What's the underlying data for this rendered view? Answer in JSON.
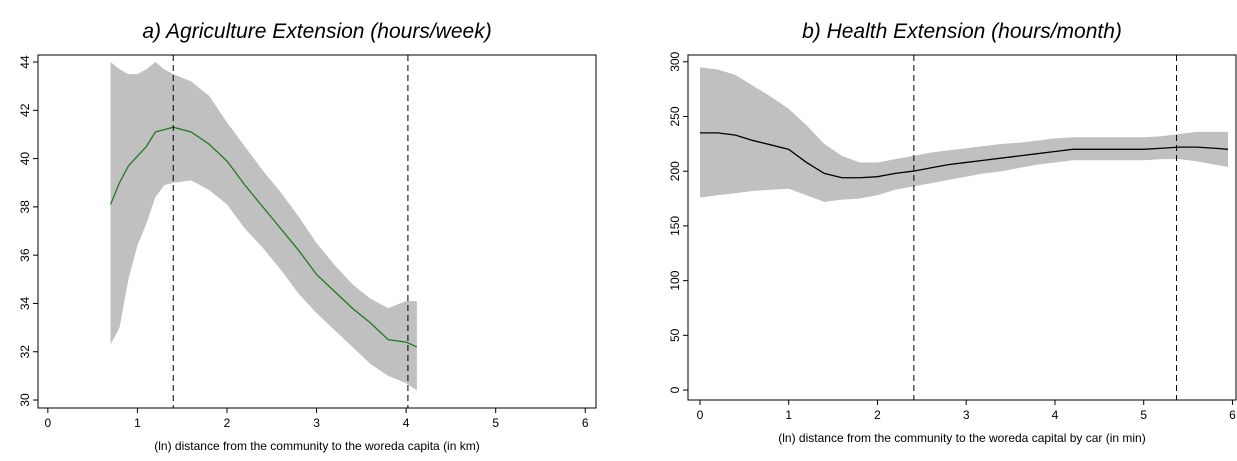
{
  "chart_data": [
    {
      "type": "line",
      "title": "a) Agriculture Extension (hours/week)",
      "x_label": "(ln) distance from the community to the woreda capita (in km)",
      "x": [
        0.7,
        0.8,
        0.9,
        1.0,
        1.1,
        1.2,
        1.3,
        1.4,
        1.6,
        1.8,
        2.0,
        2.2,
        2.4,
        2.6,
        2.8,
        3.0,
        3.2,
        3.4,
        3.6,
        3.8,
        4.0,
        4.12
      ],
      "values": [
        38.1,
        39.0,
        39.7,
        40.1,
        40.5,
        41.1,
        41.2,
        41.3,
        41.1,
        40.6,
        39.9,
        38.9,
        38.0,
        37.1,
        36.2,
        35.2,
        34.5,
        33.8,
        33.2,
        32.5,
        32.4,
        32.2
      ],
      "upper": [
        44.0,
        43.7,
        43.5,
        43.5,
        43.7,
        44.0,
        43.7,
        43.5,
        43.2,
        42.6,
        41.5,
        40.5,
        39.5,
        38.6,
        37.6,
        36.5,
        35.6,
        34.8,
        34.2,
        33.8,
        34.1,
        34.1
      ],
      "lower": [
        32.3,
        33.0,
        35.0,
        36.4,
        37.3,
        38.4,
        38.9,
        39.0,
        39.1,
        38.7,
        38.1,
        37.1,
        36.3,
        35.4,
        34.4,
        33.6,
        32.9,
        32.2,
        31.5,
        31.0,
        30.7,
        30.4
      ],
      "color": "#1e7a1e",
      "band_color": "#c0c0c0",
      "vlines": [
        1.4,
        4.02
      ],
      "xlim": [
        -0.11,
        6.12
      ],
      "xticks": [
        0,
        1,
        2,
        3,
        4,
        5,
        6
      ],
      "ylim": [
        29.67,
        44.29
      ],
      "yticks": [
        30,
        32,
        34,
        36,
        38,
        40,
        42,
        44
      ]
    },
    {
      "type": "line",
      "title": "b) Health Extension (hours/month)",
      "x_label": "(ln) distance from the community to the woreda capital by car (in min)",
      "x": [
        0,
        0.2,
        0.4,
        0.6,
        0.8,
        1.0,
        1.2,
        1.4,
        1.6,
        1.8,
        2.0,
        2.2,
        2.4,
        2.6,
        2.8,
        3.0,
        3.2,
        3.4,
        3.6,
        3.8,
        4.0,
        4.2,
        4.4,
        4.6,
        4.8,
        5.0,
        5.2,
        5.4,
        5.6,
        5.8,
        5.95
      ],
      "values": [
        235,
        235,
        233,
        228,
        224,
        220,
        208,
        198,
        194,
        194,
        195,
        198,
        200,
        203,
        206,
        208,
        210,
        212,
        214,
        216,
        218,
        220,
        220,
        220,
        220,
        220,
        221,
        222,
        222,
        221,
        220
      ],
      "upper": [
        295,
        293,
        288,
        278,
        268,
        257,
        242,
        225,
        214,
        208,
        208,
        211,
        214,
        217,
        219,
        221,
        223,
        225,
        226,
        228,
        230,
        231,
        231,
        231,
        231,
        231,
        232,
        234,
        236,
        236,
        236
      ],
      "lower": [
        176,
        178,
        180,
        182,
        183,
        184,
        178,
        172,
        174,
        175,
        178,
        183,
        186,
        189,
        192,
        195,
        198,
        200,
        203,
        206,
        208,
        210,
        210,
        210,
        210,
        210,
        211,
        211,
        209,
        206,
        204
      ],
      "color": "#000000",
      "band_color": "#c0c0c0",
      "vlines": [
        2.41,
        5.37
      ],
      "xlim": [
        -0.135,
        6.04
      ],
      "xticks": [
        0,
        1,
        2,
        3,
        4,
        5,
        6
      ],
      "ylim": [
        -9.1,
        306.2
      ],
      "yticks": [
        0,
        50,
        100,
        150,
        200,
        250,
        300
      ]
    }
  ]
}
